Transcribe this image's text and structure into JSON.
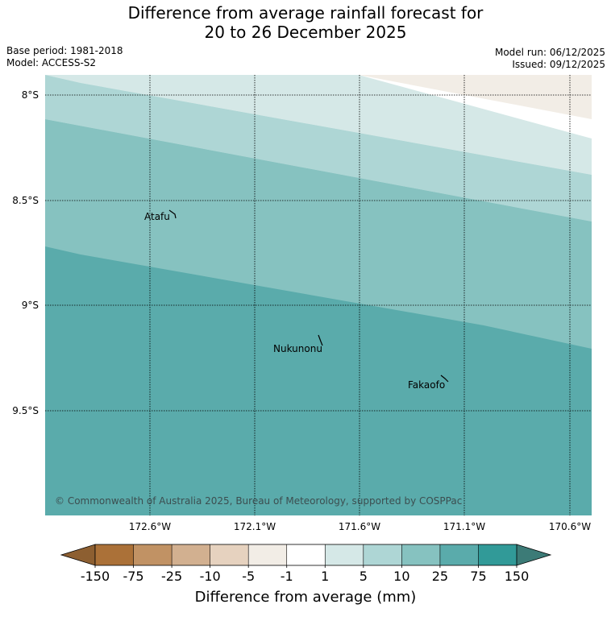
{
  "title": {
    "line1": "Difference from average rainfall forecast for",
    "line2": "20 to 26 December 2025"
  },
  "meta": {
    "base_period": "Base period: 1981-2018",
    "model": "Model: ACCESS-S2",
    "model_run": "Model run: 06/12/2025",
    "issued": "Issued: 09/12/2025"
  },
  "map": {
    "lat_labels": [
      "8°S",
      "8.5°S",
      "9°S",
      "9.5°S"
    ],
    "lon_labels": [
      "172.6°W",
      "172.1°W",
      "171.6°W",
      "171.1°W",
      "170.6°W"
    ],
    "places": [
      "Atafu",
      "Nukunonu",
      "Fakaofo"
    ],
    "copyright": "© Commonwealth of Australia 2025, Bureau of Meteorology, supported by COSPPac"
  },
  "colorbar": {
    "ticks": [
      "-150",
      "-75",
      "-25",
      "-10",
      "-5",
      "-1",
      "1",
      "5",
      "10",
      "25",
      "75",
      "150"
    ],
    "colors": [
      "#ab7138",
      "#c19264",
      "#d2b090",
      "#e6d2bf",
      "#f2ede6",
      "#ffffff",
      "#d5e8e7",
      "#aed6d5",
      "#86c2c0",
      "#5aabab",
      "#319a98"
    ],
    "extend_low_color": "#8d5f31",
    "extend_high_color": "#3c7b77",
    "label": "Difference from average (mm)"
  }
}
